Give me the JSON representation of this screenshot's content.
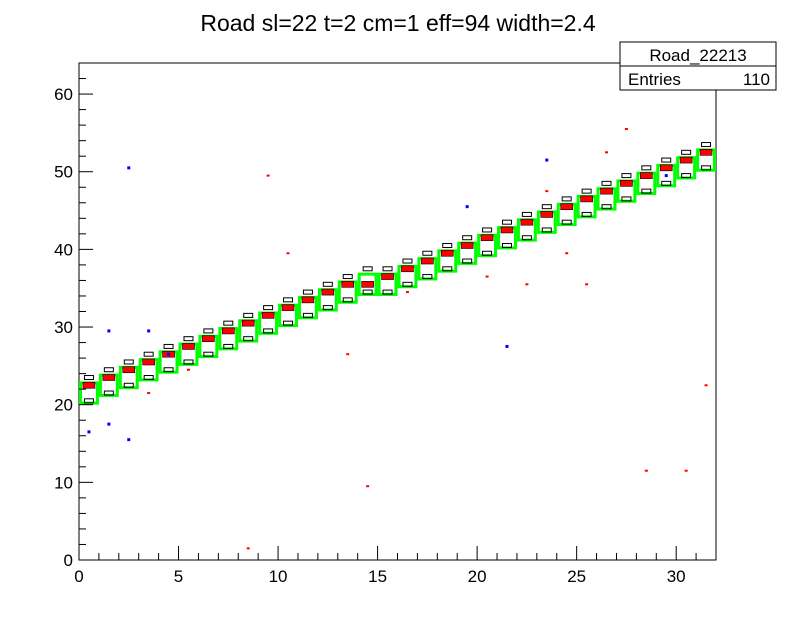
{
  "title": "Road sl=22 t=2 cm=1 eff=94 width=2.4",
  "stats_box": {
    "name": "Road_22213",
    "entries_label": "Entries",
    "entries_value": "110"
  },
  "colors": {
    "frame": "#000000",
    "road_box": "#00ff00",
    "hit_primary": "#ff0000",
    "hit_secondary": "#0000ff",
    "hist_box": "#000000"
  },
  "chart_data": {
    "type": "heatmap",
    "title": "Road sl=22 t=2 cm=1 eff=94 width=2.4",
    "xlabel": "",
    "ylabel": "",
    "xlim": [
      0,
      32
    ],
    "ylim": [
      0,
      64
    ],
    "x_ticks": [
      "0",
      "5",
      "10",
      "15",
      "20",
      "25",
      "30"
    ],
    "y_ticks": [
      "0",
      "10",
      "20",
      "30",
      "40",
      "50",
      "60"
    ],
    "grid": false,
    "legend": "top-right stats box",
    "road_cells": [
      [
        0,
        21.5
      ],
      [
        1,
        22.5
      ],
      [
        2,
        23.5
      ],
      [
        3,
        24.5
      ],
      [
        4,
        25.5
      ],
      [
        5,
        26.5
      ],
      [
        6,
        27.5
      ],
      [
        7,
        28.5
      ],
      [
        8,
        29.5
      ],
      [
        9,
        30.5
      ],
      [
        10,
        31.5
      ],
      [
        11,
        32.5
      ],
      [
        12,
        33.5
      ],
      [
        13,
        34.5
      ],
      [
        14,
        35.5
      ],
      [
        15,
        35.5
      ],
      [
        16,
        36.5
      ],
      [
        17,
        37.5
      ],
      [
        18,
        38.5
      ],
      [
        19,
        39.5
      ],
      [
        20,
        40.5
      ],
      [
        21,
        41.5
      ],
      [
        22,
        42.5
      ],
      [
        23,
        43.5
      ],
      [
        24,
        44.5
      ],
      [
        25,
        45.5
      ],
      [
        26,
        46.5
      ],
      [
        27,
        47.5
      ],
      [
        28,
        48.5
      ],
      [
        29,
        49.5
      ],
      [
        30,
        50.5
      ],
      [
        31,
        51.5
      ]
    ],
    "red_hits": [
      [
        0,
        22.5
      ],
      [
        1,
        23.5
      ],
      [
        2,
        24.5
      ],
      [
        3,
        25.5
      ],
      [
        4,
        26.5
      ],
      [
        5,
        27.5
      ],
      [
        6,
        28.5
      ],
      [
        7,
        29.5
      ],
      [
        8,
        30.5
      ],
      [
        9,
        31.5
      ],
      [
        10,
        32.5
      ],
      [
        11,
        33.5
      ],
      [
        12,
        34.5
      ],
      [
        13,
        35.5
      ],
      [
        14,
        35.5
      ],
      [
        15,
        36.5
      ],
      [
        16,
        37.5
      ],
      [
        17,
        38.5
      ],
      [
        18,
        39.5
      ],
      [
        19,
        40.5
      ],
      [
        20,
        41.5
      ],
      [
        21,
        42.5
      ],
      [
        22,
        43.5
      ],
      [
        23,
        44.5
      ],
      [
        24,
        45.5
      ],
      [
        25,
        46.5
      ],
      [
        26,
        47.5
      ],
      [
        27,
        48.5
      ],
      [
        28,
        49.5
      ],
      [
        29,
        50.5
      ],
      [
        30,
        51.5
      ],
      [
        31,
        52.5
      ],
      [
        3,
        21.5
      ],
      [
        5,
        24.5
      ],
      [
        9,
        49.5
      ],
      [
        10,
        39.5
      ],
      [
        13,
        26.5
      ],
      [
        14,
        9.5
      ],
      [
        16,
        34.5
      ],
      [
        20,
        36.5
      ],
      [
        22,
        35.5
      ],
      [
        24,
        39.5
      ],
      [
        25,
        35.5
      ],
      [
        26,
        52.5
      ],
      [
        27,
        55.5
      ],
      [
        28,
        11.5
      ],
      [
        30,
        11.5
      ],
      [
        31,
        22.5
      ],
      [
        8,
        1.5
      ],
      [
        23,
        47.5
      ]
    ],
    "blue_hits": [
      [
        4,
        26.5
      ],
      [
        29,
        49.5
      ],
      [
        23,
        51.5
      ],
      [
        21,
        27.5
      ],
      [
        1,
        29.5
      ],
      [
        1,
        17.5
      ],
      [
        2,
        15.5
      ],
      [
        0,
        16.5
      ],
      [
        2,
        50.5
      ],
      [
        3,
        29.5
      ],
      [
        19,
        45.5
      ]
    ],
    "black_hits": [
      [
        0,
        20.5
      ],
      [
        0,
        23.5
      ],
      [
        1,
        21.5
      ],
      [
        1,
        24.5
      ],
      [
        2,
        22.5
      ],
      [
        2,
        25.5
      ],
      [
        3,
        23.5
      ],
      [
        3,
        26.5
      ],
      [
        4,
        24.5
      ],
      [
        4,
        27.5
      ],
      [
        5,
        25.5
      ],
      [
        5,
        28.5
      ],
      [
        6,
        26.5
      ],
      [
        6,
        29.5
      ],
      [
        7,
        27.5
      ],
      [
        7,
        30.5
      ],
      [
        8,
        28.5
      ],
      [
        8,
        31.5
      ],
      [
        9,
        29.5
      ],
      [
        9,
        32.5
      ],
      [
        10,
        30.5
      ],
      [
        10,
        33.5
      ],
      [
        11,
        31.5
      ],
      [
        11,
        34.5
      ],
      [
        12,
        32.5
      ],
      [
        12,
        35.5
      ],
      [
        13,
        33.5
      ],
      [
        13,
        36.5
      ],
      [
        14,
        34.5
      ],
      [
        14,
        37.5
      ],
      [
        15,
        34.5
      ],
      [
        15,
        37.5
      ],
      [
        16,
        35.5
      ],
      [
        16,
        38.5
      ],
      [
        17,
        36.5
      ],
      [
        17,
        39.5
      ],
      [
        18,
        37.5
      ],
      [
        18,
        40.5
      ],
      [
        19,
        38.5
      ],
      [
        19,
        41.5
      ],
      [
        20,
        39.5
      ],
      [
        20,
        42.5
      ],
      [
        21,
        40.5
      ],
      [
        21,
        43.5
      ],
      [
        22,
        41.5
      ],
      [
        22,
        44.5
      ],
      [
        23,
        42.5
      ],
      [
        23,
        45.5
      ],
      [
        24,
        43.5
      ],
      [
        24,
        46.5
      ],
      [
        25,
        44.5
      ],
      [
        25,
        47.5
      ],
      [
        26,
        45.5
      ],
      [
        26,
        48.5
      ],
      [
        27,
        46.5
      ],
      [
        27,
        49.5
      ],
      [
        28,
        47.5
      ],
      [
        28,
        50.5
      ],
      [
        29,
        48.5
      ],
      [
        29,
        51.5
      ],
      [
        30,
        49.5
      ],
      [
        30,
        52.5
      ],
      [
        31,
        50.5
      ],
      [
        31,
        53.5
      ]
    ]
  }
}
